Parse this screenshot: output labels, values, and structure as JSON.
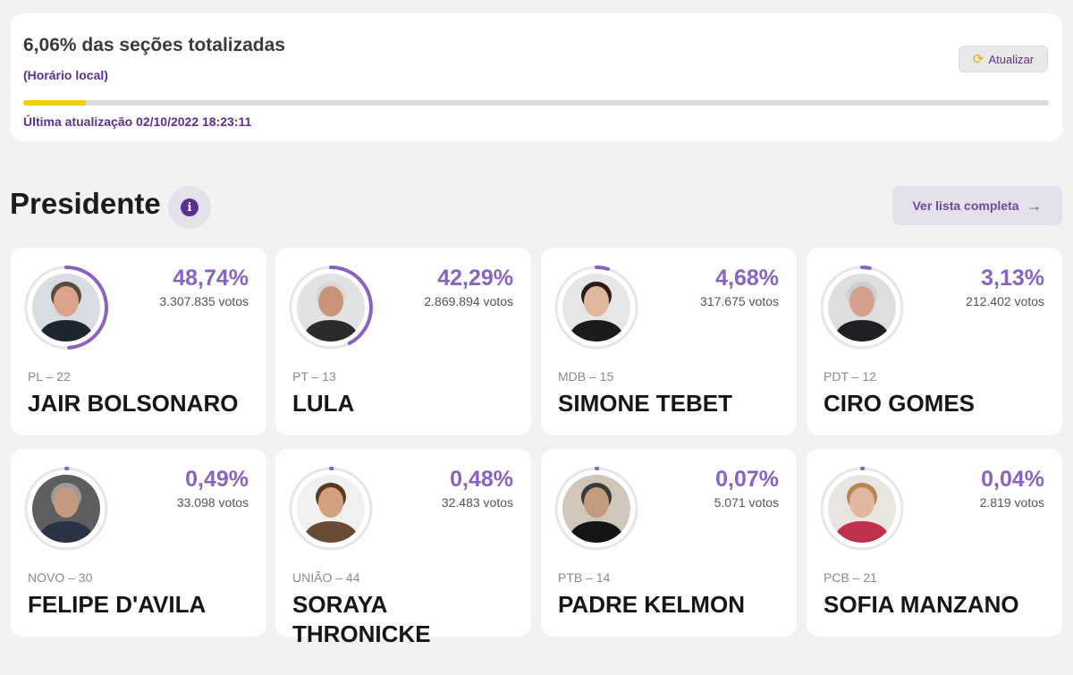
{
  "status": {
    "title": "6,06% das seções totalizadas",
    "subtitle": "(Horário local)",
    "refresh_label": "Atualizar",
    "last_update": "Última atualização 02/10/2022 18:23:11",
    "progress_fraction": 0.0606,
    "progress_color": "#f1cf00"
  },
  "section": {
    "title": "Presidente",
    "info_glyph": "i",
    "full_list_label": "Ver lista completa",
    "full_list_icon": "arrow-right-icon"
  },
  "colors": {
    "accent": "#8a62c0",
    "brand": "#5b2f91",
    "ring_track": "#e6e6e6"
  },
  "candidates": [
    {
      "pct": "48,74%",
      "share": 0.4874,
      "votes": "3.307.835 votos",
      "party": "PL – 22",
      "name": "JAIR BOLSONARO",
      "photo_bg": "#d8dde4",
      "skin": "#d9a489",
      "hair": "#5a4a40",
      "suit": "#1e2430"
    },
    {
      "pct": "42,29%",
      "share": 0.4229,
      "votes": "2.869.894 votos",
      "party": "PT – 13",
      "name": "LULA",
      "photo_bg": "#e2e2e2",
      "skin": "#c99477",
      "hair": "#d9d9d9",
      "suit": "#2b2b2b"
    },
    {
      "pct": "4,68%",
      "share": 0.0468,
      "votes": "317.675 votos",
      "party": "MDB – 15",
      "name": "SIMONE TEBET",
      "photo_bg": "#e6e6e6",
      "skin": "#e0b79c",
      "hair": "#2a1d18",
      "suit": "#1a1a1a"
    },
    {
      "pct": "3,13%",
      "share": 0.0313,
      "votes": "212.402 votos",
      "party": "PDT – 12",
      "name": "CIRO GOMES",
      "photo_bg": "#dedede",
      "skin": "#d4a28a",
      "hair": "#cfcfcf",
      "suit": "#1f1f24"
    },
    {
      "pct": "0,49%",
      "share": 0.0049,
      "votes": "33.098 votos",
      "party": "NOVO – 30",
      "name": "FELIPE D'AVILA",
      "photo_bg": "#5d5e60",
      "skin": "#c69a80",
      "hair": "#9b9b9b",
      "suit": "#2a3345"
    },
    {
      "pct": "0,48%",
      "share": 0.0048,
      "votes": "32.483 votos",
      "party": "UNIÃO – 44",
      "name": "SORAYA THRONICKE",
      "photo_bg": "#f0f0f0",
      "skin": "#d4a17e",
      "hair": "#5b3a22",
      "suit": "#6b4a35"
    },
    {
      "pct": "0,07%",
      "share": 0.0007,
      "votes": "5.071 votos",
      "party": "PTB – 14",
      "name": "PADRE KELMON",
      "photo_bg": "#cfc6b8",
      "skin": "#c49a7e",
      "hair": "#3a3a3a",
      "suit": "#141414"
    },
    {
      "pct": "0,04%",
      "share": 0.0004,
      "votes": "2.819 votos",
      "party": "PCB – 21",
      "name": "SOFIA MANZANO",
      "photo_bg": "#e8e4df",
      "skin": "#e0b79c",
      "hair": "#b8874e",
      "suit": "#c0304a"
    }
  ]
}
